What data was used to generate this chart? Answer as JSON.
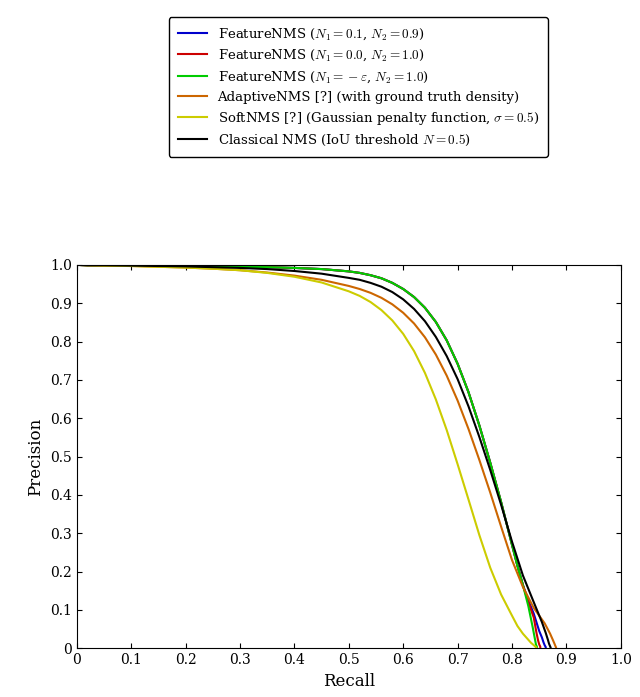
{
  "xlabel": "Recall",
  "ylabel": "Precision",
  "xlim": [
    0,
    1
  ],
  "ylim": [
    0,
    1
  ],
  "xticks": [
    0,
    0.1,
    0.2,
    0.3,
    0.4,
    0.5,
    0.6,
    0.7,
    0.8,
    0.9,
    1.0
  ],
  "yticks": [
    0,
    0.1,
    0.2,
    0.3,
    0.4,
    0.5,
    0.6,
    0.7,
    0.8,
    0.9,
    1.0
  ],
  "legend_entries": [
    {
      "label": "FeatureNMS ($N_1 = 0.1$, $N_2 = 0.9$)",
      "color": "#0000cc",
      "lw": 1.5
    },
    {
      "label": "FeatureNMS ($N_1 = 0.0$, $N_2 = 1.0$)",
      "color": "#cc0000",
      "lw": 1.5
    },
    {
      "label": "FeatureNMS ($N_1 = -\\varepsilon$, $N_2 = 1.0$)",
      "color": "#00cc00",
      "lw": 1.5
    },
    {
      "label": "AdaptiveNMS [?] (with ground truth density)",
      "color": "#cc6600",
      "lw": 1.5
    },
    {
      "label": "SoftNMS [?] (Gaussian penalty function, $\\sigma = 0.5$)",
      "color": "#cccc00",
      "lw": 1.5
    },
    {
      "label": "Classical NMS (IoU threshold $N = 0.5$)",
      "color": "#000000",
      "lw": 1.5
    }
  ],
  "curves": {
    "feature_nms_01_09": {
      "color": "#0000cc",
      "lw": 1.5,
      "recall": [
        0.0,
        0.02,
        0.05,
        0.1,
        0.15,
        0.2,
        0.25,
        0.3,
        0.35,
        0.4,
        0.45,
        0.5,
        0.52,
        0.54,
        0.56,
        0.58,
        0.6,
        0.62,
        0.64,
        0.66,
        0.68,
        0.7,
        0.72,
        0.74,
        0.76,
        0.78,
        0.8,
        0.81,
        0.82,
        0.83,
        0.84,
        0.85,
        0.855,
        0.858,
        0.86,
        0.862,
        0.862
      ],
      "precision": [
        1.0,
        0.999,
        0.999,
        0.998,
        0.997,
        0.997,
        0.996,
        0.995,
        0.994,
        0.992,
        0.989,
        0.983,
        0.979,
        0.973,
        0.965,
        0.953,
        0.937,
        0.916,
        0.888,
        0.851,
        0.803,
        0.742,
        0.668,
        0.581,
        0.484,
        0.381,
        0.27,
        0.215,
        0.165,
        0.125,
        0.09,
        0.045,
        0.028,
        0.015,
        0.008,
        0.003,
        0.0
      ]
    },
    "feature_nms_00_10": {
      "color": "#cc0000",
      "lw": 1.5,
      "recall": [
        0.0,
        0.02,
        0.05,
        0.1,
        0.15,
        0.2,
        0.25,
        0.3,
        0.35,
        0.4,
        0.45,
        0.5,
        0.52,
        0.54,
        0.56,
        0.58,
        0.6,
        0.62,
        0.64,
        0.66,
        0.68,
        0.7,
        0.72,
        0.74,
        0.76,
        0.78,
        0.8,
        0.81,
        0.82,
        0.83,
        0.84,
        0.845,
        0.848,
        0.85,
        0.852,
        0.852
      ],
      "precision": [
        1.0,
        0.999,
        0.999,
        0.998,
        0.997,
        0.997,
        0.996,
        0.995,
        0.994,
        0.992,
        0.989,
        0.983,
        0.979,
        0.973,
        0.965,
        0.953,
        0.937,
        0.916,
        0.888,
        0.851,
        0.803,
        0.742,
        0.668,
        0.581,
        0.484,
        0.381,
        0.27,
        0.215,
        0.165,
        0.12,
        0.08,
        0.04,
        0.02,
        0.01,
        0.004,
        0.0
      ]
    },
    "feature_nms_eps_10": {
      "color": "#00cc00",
      "lw": 1.5,
      "recall": [
        0.0,
        0.02,
        0.05,
        0.1,
        0.15,
        0.2,
        0.25,
        0.3,
        0.35,
        0.4,
        0.45,
        0.5,
        0.52,
        0.54,
        0.56,
        0.58,
        0.6,
        0.62,
        0.64,
        0.66,
        0.68,
        0.7,
        0.72,
        0.74,
        0.76,
        0.78,
        0.8,
        0.81,
        0.82,
        0.83,
        0.838,
        0.842,
        0.844,
        0.846,
        0.846
      ],
      "precision": [
        1.0,
        0.999,
        0.999,
        0.998,
        0.997,
        0.997,
        0.996,
        0.995,
        0.994,
        0.992,
        0.989,
        0.983,
        0.979,
        0.973,
        0.965,
        0.953,
        0.937,
        0.916,
        0.888,
        0.851,
        0.803,
        0.742,
        0.668,
        0.581,
        0.484,
        0.381,
        0.27,
        0.215,
        0.165,
        0.11,
        0.055,
        0.025,
        0.01,
        0.003,
        0.0
      ]
    },
    "adaptive_nms": {
      "color": "#cc6600",
      "lw": 1.5,
      "recall": [
        0.0,
        0.02,
        0.05,
        0.1,
        0.15,
        0.2,
        0.25,
        0.3,
        0.35,
        0.4,
        0.45,
        0.5,
        0.52,
        0.54,
        0.56,
        0.58,
        0.6,
        0.62,
        0.64,
        0.66,
        0.68,
        0.7,
        0.72,
        0.74,
        0.76,
        0.78,
        0.8,
        0.82,
        0.84,
        0.86,
        0.87,
        0.875,
        0.878,
        0.88,
        0.881,
        0.881
      ],
      "precision": [
        1.0,
        0.999,
        0.998,
        0.997,
        0.995,
        0.993,
        0.99,
        0.986,
        0.98,
        0.972,
        0.961,
        0.945,
        0.937,
        0.927,
        0.914,
        0.897,
        0.875,
        0.847,
        0.811,
        0.766,
        0.711,
        0.646,
        0.572,
        0.491,
        0.406,
        0.317,
        0.23,
        0.16,
        0.105,
        0.065,
        0.038,
        0.022,
        0.012,
        0.005,
        0.002,
        0.0
      ]
    },
    "soft_nms": {
      "color": "#cccc00",
      "lw": 1.5,
      "recall": [
        0.0,
        0.02,
        0.05,
        0.1,
        0.15,
        0.2,
        0.25,
        0.3,
        0.35,
        0.4,
        0.45,
        0.5,
        0.52,
        0.54,
        0.56,
        0.58,
        0.6,
        0.62,
        0.64,
        0.66,
        0.68,
        0.7,
        0.72,
        0.74,
        0.76,
        0.78,
        0.8,
        0.81,
        0.82,
        0.83,
        0.835,
        0.84,
        0.843,
        0.845,
        0.845
      ],
      "precision": [
        1.0,
        0.999,
        0.998,
        0.997,
        0.995,
        0.993,
        0.99,
        0.986,
        0.979,
        0.969,
        0.954,
        0.931,
        0.919,
        0.903,
        0.882,
        0.855,
        0.82,
        0.775,
        0.718,
        0.649,
        0.569,
        0.48,
        0.388,
        0.295,
        0.21,
        0.14,
        0.085,
        0.058,
        0.038,
        0.022,
        0.014,
        0.008,
        0.004,
        0.002,
        0.0
      ]
    },
    "classical_nms": {
      "color": "#000000",
      "lw": 1.5,
      "recall": [
        0.0,
        0.02,
        0.05,
        0.1,
        0.15,
        0.2,
        0.25,
        0.3,
        0.35,
        0.4,
        0.45,
        0.5,
        0.52,
        0.54,
        0.56,
        0.58,
        0.6,
        0.62,
        0.64,
        0.66,
        0.68,
        0.7,
        0.72,
        0.74,
        0.76,
        0.78,
        0.8,
        0.82,
        0.84,
        0.855,
        0.862,
        0.866,
        0.868,
        0.87,
        0.871,
        0.871
      ],
      "precision": [
        1.0,
        0.999,
        0.999,
        0.998,
        0.997,
        0.996,
        0.994,
        0.992,
        0.989,
        0.984,
        0.977,
        0.966,
        0.961,
        0.953,
        0.943,
        0.929,
        0.91,
        0.885,
        0.853,
        0.812,
        0.762,
        0.702,
        0.631,
        0.551,
        0.465,
        0.374,
        0.278,
        0.19,
        0.12,
        0.068,
        0.04,
        0.022,
        0.012,
        0.005,
        0.002,
        0.0
      ]
    }
  }
}
